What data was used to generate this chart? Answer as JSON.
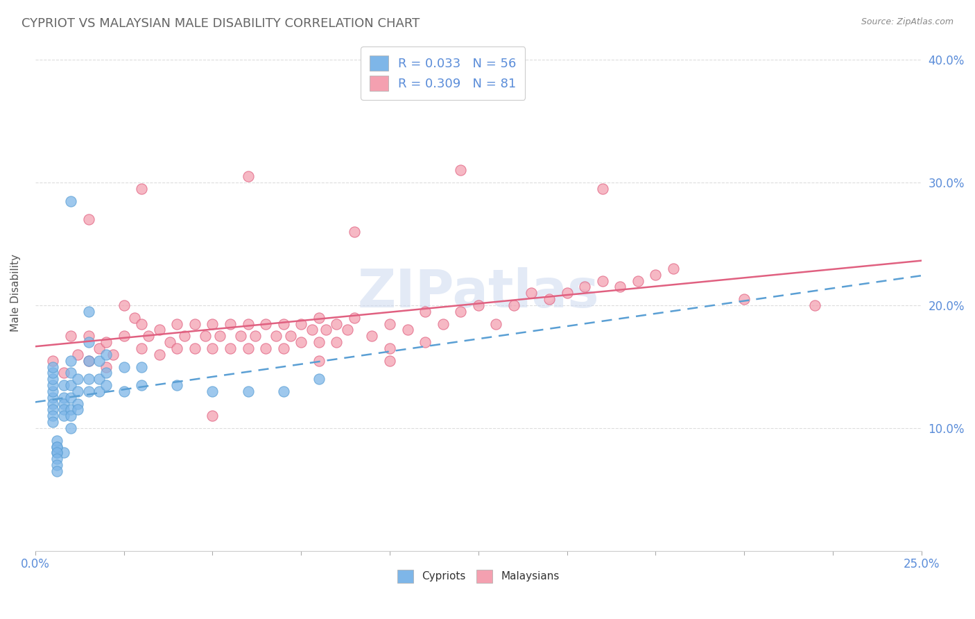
{
  "title": "CYPRIOT VS MALAYSIAN MALE DISABILITY CORRELATION CHART",
  "source_text": "Source: ZipAtlas.com",
  "ylabel": "Male Disability",
  "xlim": [
    0.0,
    0.25
  ],
  "ylim": [
    0.0,
    0.42
  ],
  "cypriot_color": "#7eb6e8",
  "malaysian_color": "#f4a0b0",
  "cypriot_line_color": "#5a9fd4",
  "malaysian_line_color": "#e06080",
  "background_color": "#ffffff",
  "grid_color": "#dddddd",
  "watermark_text": "ZIPatlas",
  "legend_entry1": "R = 0.033   N = 56",
  "legend_entry2": "R = 0.309   N = 81",
  "cypriot_x": [
    0.005,
    0.005,
    0.005,
    0.005,
    0.005,
    0.005,
    0.005,
    0.005,
    0.005,
    0.005,
    0.008,
    0.008,
    0.008,
    0.008,
    0.008,
    0.01,
    0.01,
    0.01,
    0.01,
    0.01,
    0.01,
    0.01,
    0.012,
    0.012,
    0.012,
    0.012,
    0.015,
    0.015,
    0.015,
    0.015,
    0.015,
    0.018,
    0.018,
    0.018,
    0.02,
    0.02,
    0.02,
    0.025,
    0.025,
    0.03,
    0.03,
    0.04,
    0.05,
    0.06,
    0.07,
    0.08,
    0.01,
    0.008,
    0.006,
    0.006,
    0.006,
    0.006,
    0.006,
    0.006,
    0.006,
    0.006
  ],
  "cypriot_y": [
    0.125,
    0.13,
    0.135,
    0.14,
    0.145,
    0.15,
    0.12,
    0.115,
    0.11,
    0.105,
    0.135,
    0.125,
    0.12,
    0.115,
    0.11,
    0.155,
    0.145,
    0.135,
    0.125,
    0.115,
    0.11,
    0.1,
    0.14,
    0.13,
    0.12,
    0.115,
    0.195,
    0.17,
    0.155,
    0.14,
    0.13,
    0.155,
    0.14,
    0.13,
    0.16,
    0.145,
    0.135,
    0.15,
    0.13,
    0.15,
    0.135,
    0.135,
    0.13,
    0.13,
    0.13,
    0.14,
    0.285,
    0.08,
    0.08,
    0.085,
    0.09,
    0.085,
    0.08,
    0.075,
    0.07,
    0.065
  ],
  "malaysian_x": [
    0.005,
    0.008,
    0.01,
    0.012,
    0.015,
    0.015,
    0.018,
    0.02,
    0.02,
    0.022,
    0.025,
    0.025,
    0.028,
    0.03,
    0.03,
    0.032,
    0.035,
    0.035,
    0.038,
    0.04,
    0.04,
    0.042,
    0.045,
    0.045,
    0.048,
    0.05,
    0.05,
    0.052,
    0.055,
    0.055,
    0.058,
    0.06,
    0.06,
    0.062,
    0.065,
    0.065,
    0.068,
    0.07,
    0.07,
    0.072,
    0.075,
    0.075,
    0.078,
    0.08,
    0.08,
    0.082,
    0.085,
    0.085,
    0.088,
    0.09,
    0.095,
    0.1,
    0.1,
    0.105,
    0.11,
    0.11,
    0.115,
    0.12,
    0.125,
    0.13,
    0.135,
    0.14,
    0.145,
    0.15,
    0.155,
    0.16,
    0.165,
    0.17,
    0.175,
    0.18,
    0.015,
    0.03,
    0.06,
    0.09,
    0.12,
    0.16,
    0.2,
    0.22,
    0.1,
    0.05,
    0.08
  ],
  "malaysian_y": [
    0.155,
    0.145,
    0.175,
    0.16,
    0.175,
    0.155,
    0.165,
    0.17,
    0.15,
    0.16,
    0.2,
    0.175,
    0.19,
    0.185,
    0.165,
    0.175,
    0.18,
    0.16,
    0.17,
    0.185,
    0.165,
    0.175,
    0.185,
    0.165,
    0.175,
    0.185,
    0.165,
    0.175,
    0.185,
    0.165,
    0.175,
    0.185,
    0.165,
    0.175,
    0.185,
    0.165,
    0.175,
    0.185,
    0.165,
    0.175,
    0.185,
    0.17,
    0.18,
    0.19,
    0.17,
    0.18,
    0.185,
    0.17,
    0.18,
    0.19,
    0.175,
    0.185,
    0.165,
    0.18,
    0.195,
    0.17,
    0.185,
    0.195,
    0.2,
    0.185,
    0.2,
    0.21,
    0.205,
    0.21,
    0.215,
    0.22,
    0.215,
    0.22,
    0.225,
    0.23,
    0.27,
    0.295,
    0.305,
    0.26,
    0.31,
    0.295,
    0.205,
    0.2,
    0.155,
    0.11,
    0.155
  ]
}
